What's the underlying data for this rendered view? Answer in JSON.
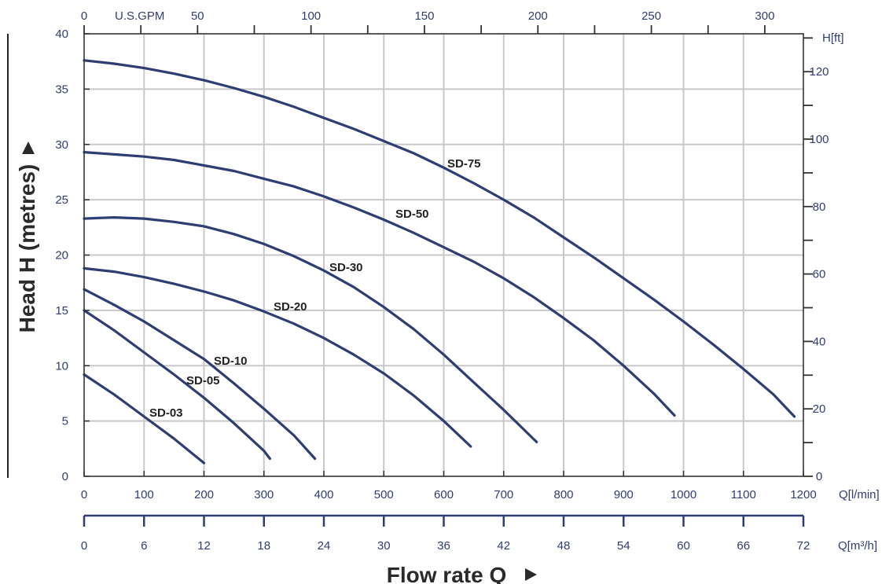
{
  "chart_data": {
    "type": "line",
    "xlabel": "Flow rate Q",
    "ylabel": "Head H (metres)",
    "x_unit": "Q[l/min]",
    "xlim": [
      0,
      1200
    ],
    "ylim": [
      0,
      40
    ],
    "x_ticks": [
      0,
      100,
      200,
      300,
      400,
      500,
      600,
      700,
      800,
      900,
      1000,
      1100,
      1200
    ],
    "y_ticks": [
      0,
      5,
      10,
      15,
      20,
      25,
      30,
      35,
      40
    ],
    "grid": true,
    "axis_top": {
      "unit": "U.S.GPM",
      "ticks": [
        0,
        50,
        100,
        150,
        200,
        250,
        300
      ],
      "minor_ticks": [
        25,
        75,
        125,
        175,
        225,
        275
      ]
    },
    "axis_right": {
      "unit": "H[ft]",
      "ticks": [
        0,
        20,
        40,
        60,
        80,
        100,
        120
      ],
      "minor_ticks": [
        10,
        30,
        50,
        70,
        90,
        110,
        130
      ]
    },
    "axis_bottom2": {
      "unit": "Q[m³/h]",
      "ticks": [
        0,
        6,
        12,
        18,
        24,
        30,
        36,
        42,
        48,
        54,
        60,
        66,
        72
      ]
    },
    "line_color": "#2e3e72",
    "series": [
      {
        "name": "SD-03",
        "x": [
          0,
          50,
          100,
          150,
          200
        ],
        "y": [
          9.2,
          7.4,
          5.4,
          3.4,
          1.2
        ]
      },
      {
        "name": "SD-05",
        "x": [
          0,
          50,
          100,
          150,
          200,
          250,
          300,
          310
        ],
        "y": [
          15.0,
          13.2,
          11.2,
          9.2,
          7.1,
          4.8,
          2.3,
          1.6
        ]
      },
      {
        "name": "SD-10",
        "x": [
          0,
          50,
          100,
          150,
          200,
          250,
          300,
          350,
          385
        ],
        "y": [
          16.9,
          15.5,
          14.0,
          12.3,
          10.6,
          8.4,
          6.1,
          3.7,
          1.6
        ]
      },
      {
        "name": "SD-20",
        "x": [
          0,
          50,
          100,
          150,
          200,
          250,
          300,
          350,
          400,
          450,
          500,
          550,
          600,
          645
        ],
        "y": [
          18.8,
          18.5,
          18.0,
          17.4,
          16.7,
          15.9,
          14.9,
          13.8,
          12.5,
          11.0,
          9.3,
          7.3,
          5.0,
          2.7
        ]
      },
      {
        "name": "SD-30",
        "x": [
          0,
          50,
          100,
          150,
          200,
          250,
          300,
          350,
          400,
          450,
          500,
          550,
          600,
          650,
          700,
          755
        ],
        "y": [
          23.3,
          23.4,
          23.3,
          23.0,
          22.6,
          21.9,
          21.0,
          19.9,
          18.6,
          17.1,
          15.3,
          13.3,
          11.0,
          8.5,
          6.0,
          3.1
        ]
      },
      {
        "name": "SD-50",
        "x": [
          0,
          50,
          100,
          150,
          200,
          250,
          300,
          350,
          400,
          450,
          500,
          550,
          600,
          650,
          700,
          750,
          800,
          850,
          900,
          950,
          985
        ],
        "y": [
          29.3,
          29.1,
          28.9,
          28.6,
          28.1,
          27.6,
          26.9,
          26.2,
          25.3,
          24.3,
          23.2,
          22.0,
          20.7,
          19.4,
          17.9,
          16.2,
          14.3,
          12.3,
          10.0,
          7.5,
          5.5
        ]
      },
      {
        "name": "SD-75",
        "x": [
          0,
          50,
          100,
          150,
          200,
          250,
          300,
          350,
          400,
          450,
          500,
          550,
          600,
          650,
          700,
          750,
          800,
          850,
          900,
          950,
          1000,
          1050,
          1100,
          1150,
          1185
        ],
        "y": [
          37.6,
          37.3,
          36.9,
          36.4,
          35.8,
          35.1,
          34.3,
          33.4,
          32.4,
          31.4,
          30.3,
          29.2,
          27.9,
          26.5,
          25.0,
          23.4,
          21.6,
          19.8,
          17.9,
          16.0,
          14.0,
          11.9,
          9.7,
          7.4,
          5.4
        ]
      }
    ]
  }
}
